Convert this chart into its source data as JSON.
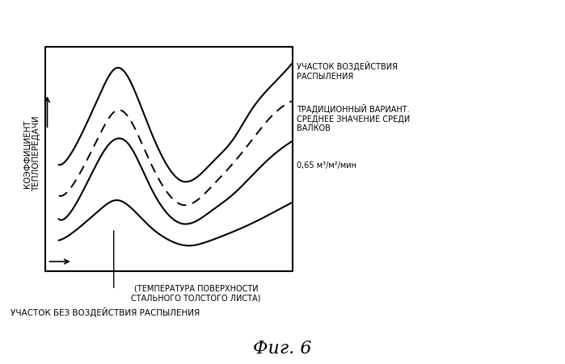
{
  "title": "Фиг. 6",
  "ylabel": "КОЭФФИЦИЕНТ\nТЕПЛОПЕРЕДАЧИ",
  "xlabel_arrow": true,
  "xlabel_label": "(ТЕМПЕРАТУРА ПОВЕРХНОСТИ\nСТАЛЬНОГО ТОЛСТОГО ЛИСТА)",
  "label_spray": "УЧАСТОК ВОЗДЕЙСТВИЯ\nРАСПЫЛЕНИЯ",
  "label_traditional": "ТРАДИЦИОННЫЙ ВАРИАНТ.\nСРЕДНЕЕ ЗНАЧЕНИЕ СРЕДИ\nВАЛКОВ",
  "label_065": "0,65 м³/м²/мин",
  "label_no_spray": "УЧАСТОК БЕЗ ВОЗДЕЙСТВИЯ РАСПЫЛЕНИЯ",
  "label_temp": "(ТЕМПЕРАТУРА ПОВЕРХНОСТИ\nСТАЛЬНОГО ТОЛСТОГО ЛИСТА)",
  "background_color": "#ffffff",
  "line_color": "#000000",
  "font_size_title": 16,
  "font_size_labels": 8
}
